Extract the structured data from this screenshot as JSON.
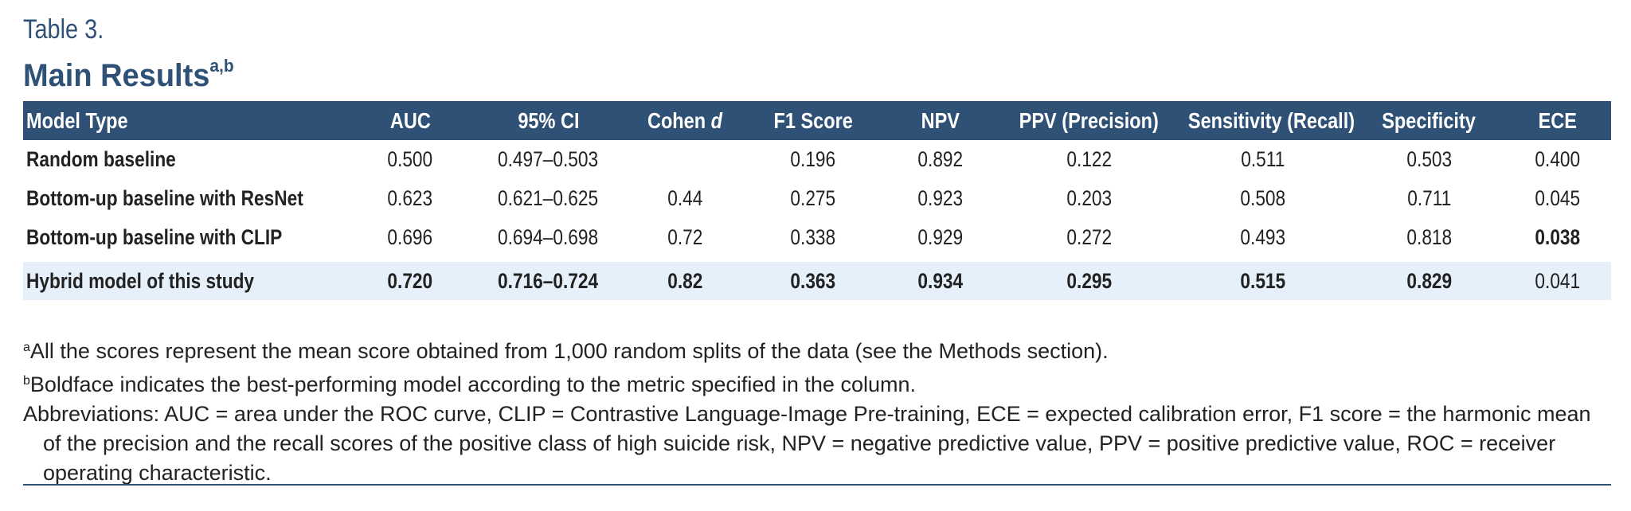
{
  "header": {
    "label": "Table 3.",
    "title": "Main Results",
    "title_sup": "a,b"
  },
  "table": {
    "columns": [
      "Model Type",
      "AUC",
      "95% CI",
      {
        "text": "Cohen",
        "italic": "d"
      },
      "F1 Score",
      "NPV",
      "PPV (Precision)",
      "Sensitivity (Recall)",
      "Specificity",
      "ECE"
    ],
    "rows": [
      {
        "cells": [
          "Random baseline",
          "0.500",
          "0.497–0.503",
          null,
          "0.196",
          "0.892",
          "0.122",
          "0.511",
          "0.503",
          "0.400"
        ],
        "bold": [
          0
        ],
        "highlight": false
      },
      {
        "cells": [
          "Bottom-up baseline with ResNet",
          "0.623",
          "0.621–0.625",
          "0.44",
          "0.275",
          "0.923",
          "0.203",
          "0.508",
          "0.711",
          "0.045"
        ],
        "bold": [
          0
        ],
        "highlight": false
      },
      {
        "cells": [
          "Bottom-up baseline with CLIP",
          "0.696",
          "0.694–0.698",
          "0.72",
          "0.338",
          "0.929",
          "0.272",
          "0.493",
          "0.818",
          "0.038"
        ],
        "bold": [
          0,
          9
        ],
        "highlight": false
      },
      {
        "cells": [
          "Hybrid model of this study",
          "0.720",
          "0.716–0.724",
          "0.82",
          "0.363",
          "0.934",
          "0.295",
          "0.515",
          "0.829",
          "0.041"
        ],
        "bold": [
          0,
          1,
          2,
          3,
          4,
          5,
          6,
          7,
          8
        ],
        "highlight": true
      }
    ]
  },
  "notes": [
    {
      "mark": "a",
      "text": "All the scores represent the mean score obtained from 1,000 random splits of the data (see the Methods section)."
    },
    {
      "mark": "b",
      "text": "Boldface indicates the best-performing model according to the metric specified in the column."
    },
    {
      "text": "Abbreviations: AUC = area under the ROC curve, CLIP = Contrastive Language-Image Pre-training, ECE = expected calibration error, F1 score = the harmonic mean of the precision and the recall scores of the positive class of high suicide risk, NPV = negative predictive value, PPV = positive predictive value, ROC = receiver operating characteristic."
    }
  ]
}
